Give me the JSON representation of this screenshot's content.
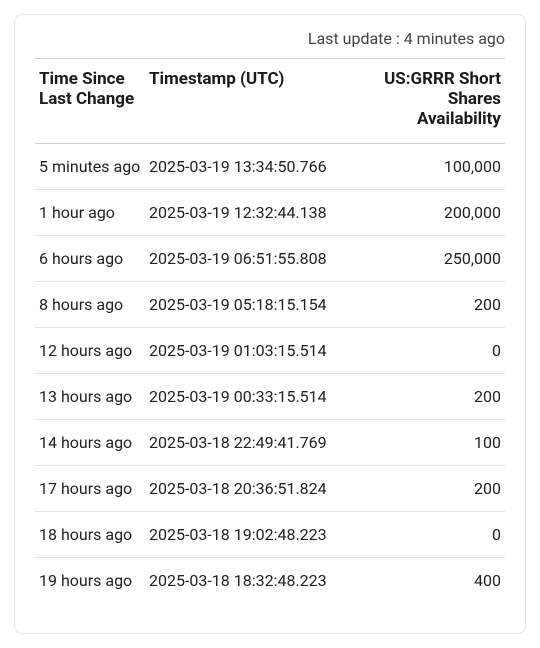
{
  "last_update": "Last update : 4 minutes ago",
  "columns": {
    "time_since": "Time Since Last Change",
    "timestamp": "Timestamp (UTC)",
    "availability": "US:GRRR Short Shares Availability"
  },
  "rows": [
    {
      "time_since": "5 minutes ago",
      "timestamp": "2025-03-19 13:34:50.766",
      "availability": "100,000"
    },
    {
      "time_since": "1 hour ago",
      "timestamp": "2025-03-19 12:32:44.138",
      "availability": "200,000"
    },
    {
      "time_since": "6 hours ago",
      "timestamp": "2025-03-19 06:51:55.808",
      "availability": "250,000"
    },
    {
      "time_since": "8 hours ago",
      "timestamp": "2025-03-19 05:18:15.154",
      "availability": "200"
    },
    {
      "time_since": "12 hours ago",
      "timestamp": "2025-03-19 01:03:15.514",
      "availability": "0"
    },
    {
      "time_since": "13 hours ago",
      "timestamp": "2025-03-19 00:33:15.514",
      "availability": "200"
    },
    {
      "time_since": "14 hours ago",
      "timestamp": "2025-03-18 22:49:41.769",
      "availability": "100"
    },
    {
      "time_since": "17 hours ago",
      "timestamp": "2025-03-18 20:36:51.824",
      "availability": "200"
    },
    {
      "time_since": "18 hours ago",
      "timestamp": "2025-03-18 19:02:48.223",
      "availability": "0"
    },
    {
      "time_since": "19 hours ago",
      "timestamp": "2025-03-18 18:32:48.223",
      "availability": "400"
    }
  ]
}
